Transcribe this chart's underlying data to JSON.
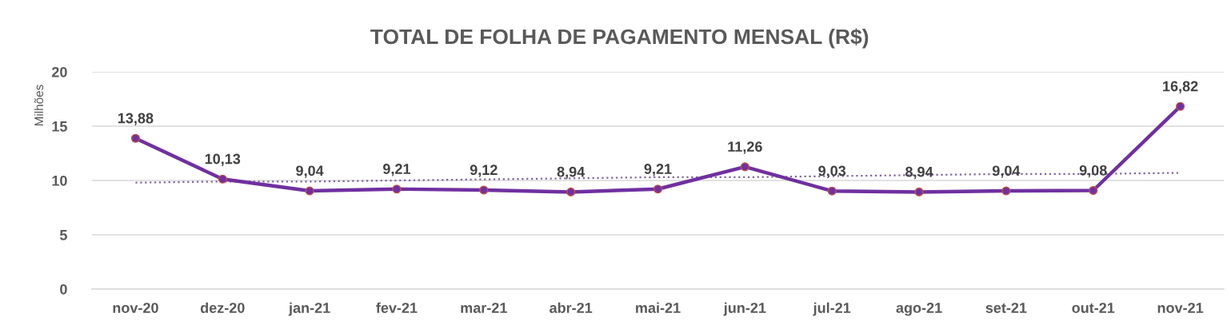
{
  "chart_data": {
    "type": "line",
    "title": "TOTAL DE FOLHA DE PAGAMENTO MENSAL (R$)",
    "ylabel": "Milhões",
    "categories": [
      "nov-20",
      "dez-20",
      "jan-21",
      "fev-21",
      "mar-21",
      "abr-21",
      "mai-21",
      "jun-21",
      "jul-21",
      "ago-21",
      "set-21",
      "out-21",
      "nov-21"
    ],
    "series": [
      {
        "color": "#7030a0",
        "values": [
          13.88,
          10.13,
          9.04,
          9.21,
          9.12,
          8.94,
          9.21,
          11.26,
          9.03,
          8.94,
          9.04,
          9.08,
          16.82
        ],
        "value_labels": [
          "13,88",
          "10,13",
          "9,04",
          "9,21",
          "9,12",
          "8,94",
          "9,21",
          "11,26",
          "9,03",
          "8,94",
          "9,04",
          "9,08",
          "16,82"
        ]
      },
      {
        "type": "line",
        "color": "#8064a2",
        "line_style": "dotted",
        "marker": "none",
        "values": [
          9.8,
          9.9,
          9.9,
          10.0,
          10.1,
          10.2,
          10.3,
          10.3,
          10.4,
          10.5,
          10.6,
          10.6,
          10.7
        ]
      }
    ],
    "ylim": [
      0,
      20
    ],
    "yticks": [
      0,
      5,
      10,
      15,
      20
    ],
    "grid": "y",
    "marker": "circle",
    "line_style": "solid"
  }
}
